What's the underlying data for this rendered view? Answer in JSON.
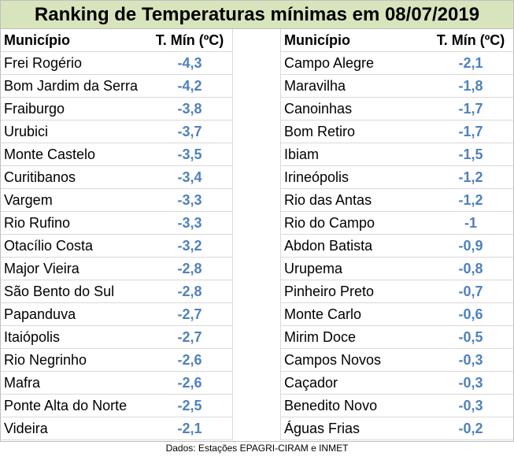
{
  "title": "Ranking de Temperaturas mínimas em 08/07/2019",
  "headers": {
    "municipio": "Município",
    "temp": "T. Mín (ºC)"
  },
  "left_rows": [
    {
      "name": "Frei Rogério",
      "value": "-4,3"
    },
    {
      "name": "Bom Jardim da Serra",
      "value": "-4,2"
    },
    {
      "name": "Fraiburgo",
      "value": "-3,8"
    },
    {
      "name": "Urubici",
      "value": "-3,7"
    },
    {
      "name": "Monte Castelo",
      "value": "-3,5"
    },
    {
      "name": "Curitibanos",
      "value": "-3,4"
    },
    {
      "name": "Vargem",
      "value": "-3,3"
    },
    {
      "name": "Rio Rufino",
      "value": "-3,3"
    },
    {
      "name": "Otacílio Costa",
      "value": "-3,2"
    },
    {
      "name": "Major Vieira",
      "value": "-2,8"
    },
    {
      "name": "São Bento do Sul",
      "value": "-2,8"
    },
    {
      "name": "Papanduva",
      "value": "-2,7"
    },
    {
      "name": "Itaiópolis",
      "value": "-2,7"
    },
    {
      "name": "Rio Negrinho",
      "value": "-2,6"
    },
    {
      "name": "Mafra",
      "value": "-2,6"
    },
    {
      "name": "Ponte Alta do Norte",
      "value": "-2,5"
    },
    {
      "name": "Videira",
      "value": "-2,1"
    }
  ],
  "right_rows": [
    {
      "name": "Campo Alegre",
      "value": "-2,1"
    },
    {
      "name": "Maravilha",
      "value": "-1,8"
    },
    {
      "name": "Canoinhas",
      "value": "-1,7"
    },
    {
      "name": "Bom Retiro",
      "value": "-1,7"
    },
    {
      "name": "Ibiam",
      "value": "-1,5"
    },
    {
      "name": "Irineópolis",
      "value": "-1,2"
    },
    {
      "name": "Rio das Antas",
      "value": "-1,2"
    },
    {
      "name": "Rio do Campo",
      "value": "-1"
    },
    {
      "name": "Abdon Batista",
      "value": "-0,9"
    },
    {
      "name": "Urupema",
      "value": "-0,8"
    },
    {
      "name": "Pinheiro Preto",
      "value": "-0,7"
    },
    {
      "name": "Monte Carlo",
      "value": "-0,6"
    },
    {
      "name": "Mirim Doce",
      "value": "-0,5"
    },
    {
      "name": "Campos Novos",
      "value": "-0,3"
    },
    {
      "name": "Caçador",
      "value": "-0,3"
    },
    {
      "name": "Benedito Novo",
      "value": "-0,3"
    },
    {
      "name": "Águas Frias",
      "value": "-0,2"
    }
  ],
  "footer": "Dados: Estações EPAGRI-CIRAM  e INMET",
  "colors": {
    "title_bg": "#d8e4bc",
    "value_text": "#4f81bd",
    "grid": "#d9d9d9"
  }
}
